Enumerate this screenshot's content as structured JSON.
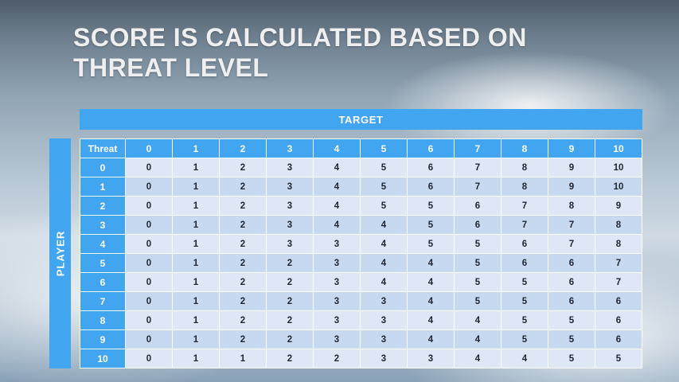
{
  "slide": {
    "title_line1": "SCORE IS CALCULATED BASED ON",
    "title_line2": "THREAT LEVEL"
  },
  "table": {
    "target_label": "TARGET",
    "player_label": "PLAYER",
    "corner_label": "Threat",
    "column_headers": [
      "0",
      "1",
      "2",
      "3",
      "4",
      "5",
      "6",
      "7",
      "8",
      "9",
      "10"
    ],
    "rows": [
      {
        "header": "0",
        "values": [
          0,
          1,
          2,
          3,
          4,
          5,
          6,
          7,
          8,
          9,
          10
        ]
      },
      {
        "header": "1",
        "values": [
          0,
          1,
          2,
          3,
          4,
          5,
          6,
          7,
          8,
          9,
          10
        ]
      },
      {
        "header": "2",
        "values": [
          0,
          1,
          2,
          3,
          4,
          5,
          5,
          6,
          7,
          8,
          9
        ]
      },
      {
        "header": "3",
        "values": [
          0,
          1,
          2,
          3,
          4,
          4,
          5,
          6,
          7,
          7,
          8
        ]
      },
      {
        "header": "4",
        "values": [
          0,
          1,
          2,
          3,
          3,
          4,
          5,
          5,
          6,
          7,
          8
        ]
      },
      {
        "header": "5",
        "values": [
          0,
          1,
          2,
          2,
          3,
          4,
          4,
          5,
          6,
          6,
          7
        ]
      },
      {
        "header": "6",
        "values": [
          0,
          1,
          2,
          2,
          3,
          4,
          4,
          5,
          5,
          6,
          7
        ]
      },
      {
        "header": "7",
        "values": [
          0,
          1,
          2,
          2,
          3,
          3,
          4,
          5,
          5,
          6,
          6
        ]
      },
      {
        "header": "8",
        "values": [
          0,
          1,
          2,
          2,
          3,
          3,
          4,
          4,
          5,
          5,
          6
        ]
      },
      {
        "header": "9",
        "values": [
          0,
          1,
          2,
          2,
          3,
          3,
          4,
          4,
          5,
          5,
          6
        ]
      },
      {
        "header": "10",
        "values": [
          0,
          1,
          1,
          2,
          2,
          3,
          3,
          4,
          4,
          5,
          5
        ]
      }
    ]
  },
  "colors": {
    "accent_blue": "#42a5f0",
    "row_light": "#dde7f5",
    "row_dark": "#c7d9f0",
    "cell_text": "#1f2430"
  }
}
